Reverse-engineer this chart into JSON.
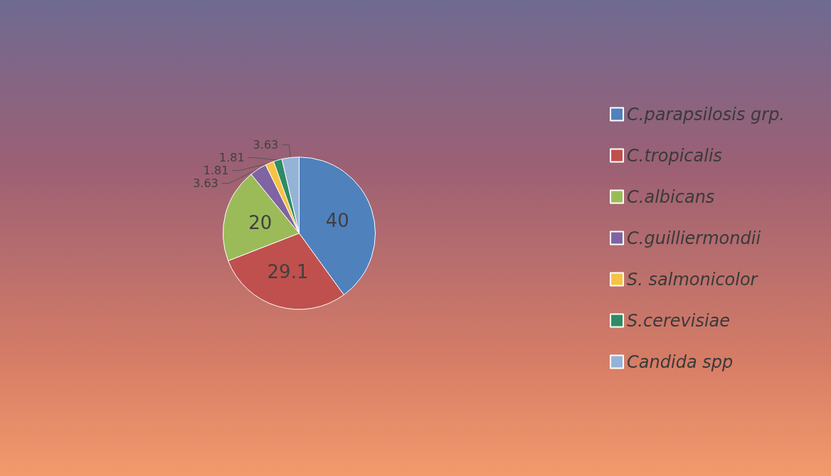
{
  "chart_data": {
    "type": "pie",
    "categories": [
      "C.parapsilosis grp.",
      "C.tropicalis",
      "C.albicans",
      "C.guilliermondii",
      "S. salmonicolor",
      "S.cerevisiae",
      "Candida spp"
    ],
    "values": [
      40,
      29.1,
      20,
      3.63,
      1.81,
      1.81,
      3.63
    ],
    "colors": [
      "#4f81bd",
      "#c0504d",
      "#9bbb59",
      "#8064a2",
      "#f6c342",
      "#2e8b63",
      "#95b3d7"
    ],
    "data_labels": true,
    "legend": "right"
  }
}
